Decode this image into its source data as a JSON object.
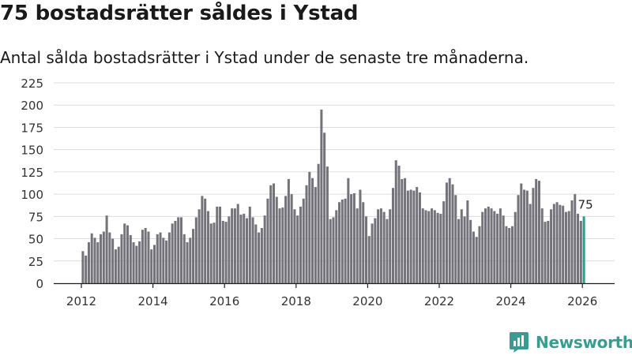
{
  "title": "75 bostadsrätter såldes i Ystad",
  "subtitle": "Antal sålda bostadsrätter i Ystad under de senaste tre månaderna.",
  "brand": {
    "name": "Newsworthy",
    "color": "#3a9b91",
    "icon": "newsworthy-logo-icon"
  },
  "colors": {
    "bar": "#74737a",
    "highlight": "#2a9d8f",
    "grid": "#dcdcdc",
    "axis": "#1e1e1e"
  },
  "chart_data": {
    "type": "bar",
    "title": "75 bostadsrätter såldes i Ystad",
    "xlabel": "",
    "ylabel": "",
    "ylim": [
      0,
      225
    ],
    "yticks": [
      0,
      25,
      50,
      75,
      100,
      125,
      150,
      175,
      200,
      225
    ],
    "xticks": [
      "2012",
      "2014",
      "2016",
      "2018",
      "2020",
      "2022",
      "2024",
      "2026"
    ],
    "grid": true,
    "start": "2012-01",
    "end": "2025-12",
    "highlight_label": "75",
    "values": [
      36,
      31,
      46,
      56,
      51,
      46,
      55,
      58,
      76,
      57,
      50,
      38,
      41,
      55,
      67,
      65,
      54,
      46,
      42,
      47,
      60,
      62,
      58,
      38,
      43,
      55,
      57,
      51,
      48,
      57,
      67,
      70,
      74,
      74,
      55,
      46,
      51,
      61,
      74,
      83,
      98,
      95,
      81,
      67,
      68,
      86,
      86,
      70,
      69,
      75,
      84,
      84,
      89,
      77,
      78,
      73,
      86,
      74,
      66,
      57,
      62,
      76,
      95,
      110,
      112,
      97,
      84,
      85,
      98,
      117,
      100,
      83,
      76,
      86,
      95,
      110,
      125,
      118,
      108,
      134,
      195,
      169,
      131,
      72,
      74,
      82,
      91,
      94,
      95,
      118,
      100,
      101,
      84,
      105,
      91,
      75,
      53,
      67,
      73,
      83,
      84,
      80,
      72,
      83,
      107,
      138,
      132,
      117,
      118,
      104,
      105,
      104,
      108,
      102,
      84,
      82,
      81,
      84,
      82,
      79,
      78,
      92,
      113,
      118,
      111,
      99,
      72,
      83,
      75,
      93,
      71,
      58,
      52,
      64,
      80,
      84,
      86,
      84,
      81,
      78,
      84,
      76,
      64,
      62,
      64,
      80,
      99,
      112,
      105,
      104,
      89,
      107,
      117,
      115,
      84,
      69,
      70,
      83,
      89,
      91,
      88,
      87,
      80,
      81,
      93,
      100,
      78,
      70,
      75
    ]
  }
}
